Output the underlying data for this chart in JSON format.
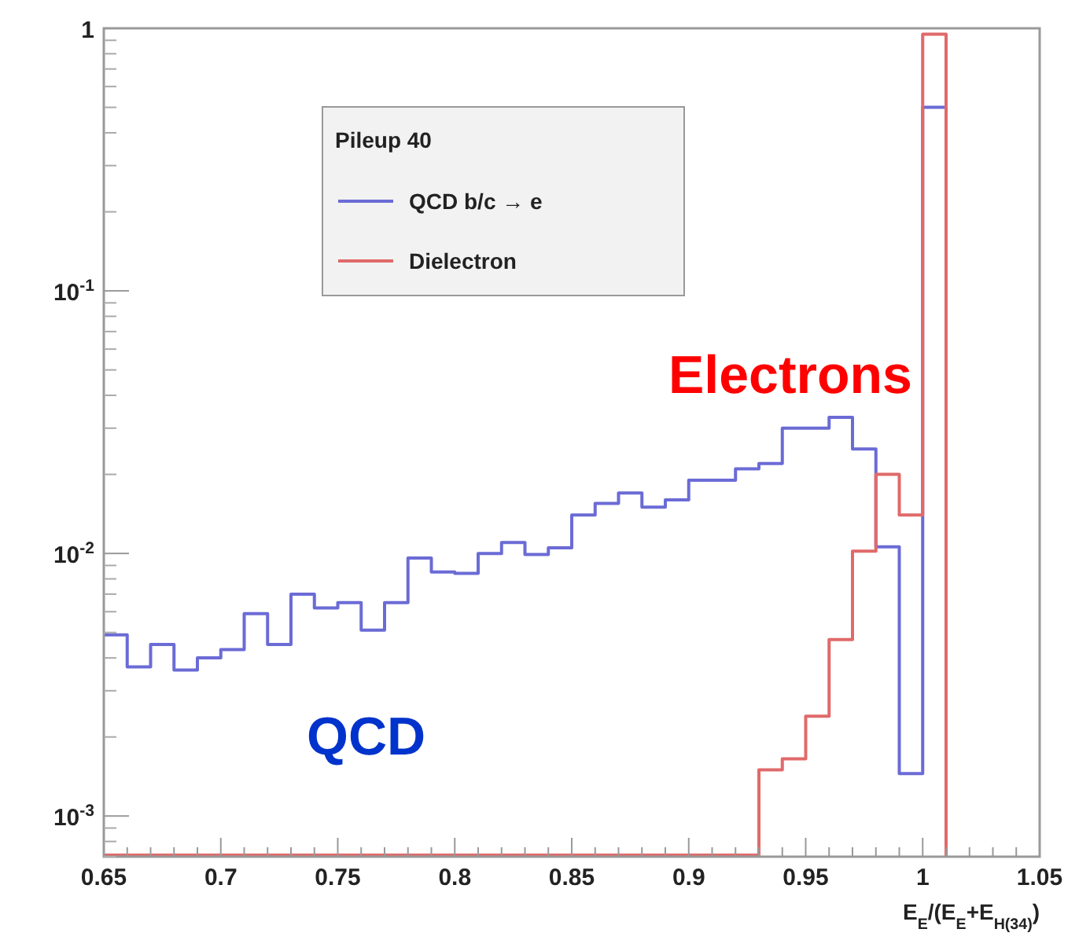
{
  "chart_data": {
    "type": "histogram",
    "xlabel": "E$_{E}$/(E$_{E}$+E$_{H(34)}$)",
    "legend_title": "Pileup 40",
    "bins": [
      0.65,
      0.66,
      0.67,
      0.68,
      0.69,
      0.7,
      0.71,
      0.72,
      0.73,
      0.74,
      0.75,
      0.76,
      0.77,
      0.78,
      0.79,
      0.8,
      0.81,
      0.82,
      0.83,
      0.84,
      0.85,
      0.86,
      0.87,
      0.88,
      0.89,
      0.9,
      0.91,
      0.92,
      0.93,
      0.94,
      0.95,
      0.96,
      0.97,
      0.98,
      0.99,
      1.0,
      1.01
    ],
    "series": [
      {
        "name": "QCD b/c → e",
        "color": "#6b6bd6",
        "values": [
          0.0049,
          0.0037,
          0.0045,
          0.0036,
          0.004,
          0.0043,
          0.0059,
          0.0045,
          0.007,
          0.0062,
          0.0065,
          0.0051,
          0.0065,
          0.0096,
          0.0085,
          0.0084,
          0.01,
          0.011,
          0.0099,
          0.0105,
          0.014,
          0.0155,
          0.017,
          0.015,
          0.016,
          0.019,
          0.019,
          0.021,
          0.022,
          0.03,
          0.03,
          0.033,
          0.025,
          0.0106,
          0.00145,
          0.5
        ]
      },
      {
        "name": "Dielectron",
        "color": "#e06a6a",
        "values": [
          null,
          null,
          null,
          null,
          null,
          null,
          null,
          null,
          null,
          null,
          null,
          null,
          null,
          null,
          null,
          null,
          null,
          null,
          null,
          null,
          null,
          null,
          null,
          null,
          null,
          null,
          null,
          null,
          0.0015,
          0.00165,
          0.0024,
          0.0047,
          0.0102,
          0.02,
          0.014,
          0.95
        ]
      }
    ],
    "xlim": [
      0.65,
      1.05
    ],
    "ylim": [
      0.0007,
      1
    ],
    "log": true,
    "xticks": [
      0.65,
      {
        "value": 0.66,
        "label": null
      },
      {
        "value": 0.67,
        "label": null
      },
      {
        "value": 0.68,
        "label": null
      },
      {
        "value": 0.69,
        "label": null
      },
      0.7,
      {
        "value": 0.71,
        "label": null
      },
      {
        "value": 0.72,
        "label": null
      },
      {
        "value": 0.73,
        "label": null
      },
      {
        "value": 0.74,
        "label": null
      },
      0.75,
      {
        "value": 0.76,
        "label": null
      },
      {
        "value": 0.77,
        "label": null
      },
      {
        "value": 0.78,
        "label": null
      },
      {
        "value": 0.79,
        "label": null
      },
      0.8,
      {
        "value": 0.81,
        "label": null
      },
      {
        "value": 0.82,
        "label": null
      },
      {
        "value": 0.83,
        "label": null
      },
      {
        "value": 0.84,
        "label": null
      },
      0.85,
      {
        "value": 0.86,
        "label": null
      },
      {
        "value": 0.87,
        "label": null
      },
      {
        "value": 0.88,
        "label": null
      },
      {
        "value": 0.89,
        "label": null
      },
      0.9,
      {
        "value": 0.91,
        "label": null
      },
      {
        "value": 0.92,
        "label": null
      },
      {
        "value": 0.93,
        "label": null
      },
      {
        "value": 0.94,
        "label": null
      },
      0.95,
      {
        "value": 0.96,
        "label": null
      },
      {
        "value": 0.97,
        "label": null
      },
      {
        "value": 0.98,
        "label": null
      },
      {
        "value": 0.99,
        "label": null
      },
      1,
      {
        "value": 1.01,
        "label": null
      },
      {
        "value": 1.02,
        "label": null
      },
      {
        "value": 1.03,
        "label": null
      },
      {
        "value": 1.04,
        "label": null
      },
      1.05
    ],
    "yticks": [
      {
        "value": 0.001,
        "label": "10$^{-3}$"
      },
      {
        "value": 0.01,
        "label": "10$^{-2}$"
      },
      {
        "value": 0.1,
        "label": "10$^{-1}$"
      },
      1
    ],
    "legend": "top left",
    "annotations": [
      "Electrons",
      "QCD"
    ]
  }
}
